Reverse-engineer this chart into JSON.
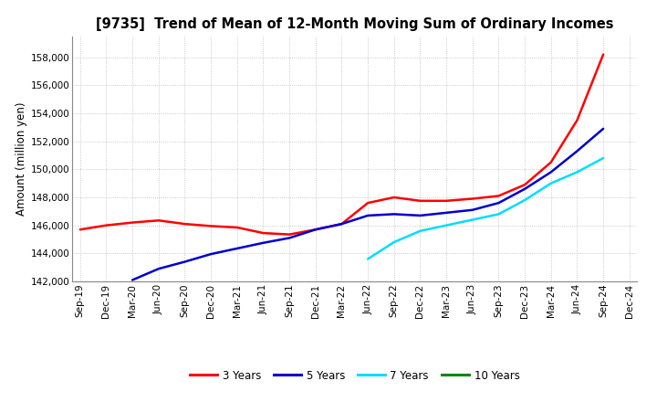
{
  "title": "[9735]  Trend of Mean of 12-Month Moving Sum of Ordinary Incomes",
  "ylabel": "Amount (million yen)",
  "background_color": "#ffffff",
  "plot_bg_color": "#ffffff",
  "grid_color": "#bbbbbb",
  "ylim": [
    142000,
    159500
  ],
  "yticks": [
    142000,
    144000,
    146000,
    148000,
    150000,
    152000,
    154000,
    156000,
    158000
  ],
  "x_labels": [
    "Sep-19",
    "Dec-19",
    "Mar-20",
    "Jun-20",
    "Sep-20",
    "Dec-20",
    "Mar-21",
    "Jun-21",
    "Sep-21",
    "Dec-21",
    "Mar-22",
    "Jun-22",
    "Sep-22",
    "Dec-22",
    "Mar-23",
    "Jun-23",
    "Sep-23",
    "Dec-23",
    "Mar-24",
    "Jun-24",
    "Sep-24",
    "Dec-24"
  ],
  "series": {
    "3 Years": {
      "color": "#ff0000",
      "data": [
        145700,
        146000,
        146200,
        146350,
        146100,
        145950,
        145850,
        145450,
        145350,
        145700,
        146100,
        147600,
        148000,
        147750,
        147750,
        147900,
        148100,
        148900,
        150500,
        153500,
        158200,
        null
      ]
    },
    "5 Years": {
      "color": "#0000cc",
      "data": [
        null,
        null,
        142100,
        142900,
        143400,
        143950,
        144350,
        144750,
        145100,
        145700,
        146100,
        146700,
        146800,
        146700,
        146900,
        147100,
        147600,
        148600,
        149800,
        151300,
        152900,
        null
      ]
    },
    "7 Years": {
      "color": "#00ddff",
      "data": [
        null,
        null,
        null,
        null,
        null,
        null,
        null,
        null,
        null,
        null,
        null,
        143600,
        144800,
        145600,
        146000,
        146400,
        146800,
        147800,
        149000,
        149800,
        150800,
        null
      ]
    },
    "10 Years": {
      "color": "#008800",
      "data": [
        null,
        null,
        null,
        null,
        null,
        null,
        null,
        null,
        null,
        null,
        null,
        null,
        null,
        null,
        null,
        null,
        null,
        null,
        null,
        null,
        null,
        null
      ]
    }
  },
  "legend_labels": [
    "3 Years",
    "5 Years",
    "7 Years",
    "10 Years"
  ],
  "legend_colors": [
    "#ff0000",
    "#0000cc",
    "#00ddff",
    "#008800"
  ],
  "title_fontsize": 10.5,
  "ylabel_fontsize": 8.5,
  "tick_fontsize": 7.5,
  "legend_fontsize": 8.5,
  "linewidth": 1.8
}
